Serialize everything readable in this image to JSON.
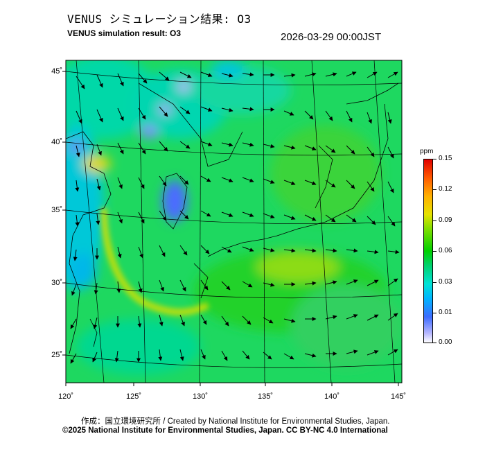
{
  "title_ja": "VENUS シミュレーション結果: O3",
  "title_en": "VENUS simulation result: O3",
  "timestamp": "2026-03-29 00:00JST",
  "lat_labels": [
    "45˚",
    "40˚",
    "35˚",
    "30˚",
    "25˚"
  ],
  "lon_labels": [
    "120˚",
    "125˚",
    "130˚",
    "135˚",
    "140˚",
    "145˚"
  ],
  "colorbar": {
    "unit": "ppm",
    "ticks": [
      "0.00",
      "0.01",
      "0.03",
      "0.06",
      "0.09",
      "0.12",
      "0.15"
    ],
    "colors": [
      "#ffffff",
      "#3c6cff",
      "#00b4ff",
      "#00d000",
      "#e6e200",
      "#ff5a00",
      "#e00000"
    ]
  },
  "credit_ja": "作成：国立環境研究所 / Created by National Institute for Environmental Studies, Japan.",
  "credit_en": "©2025 National Institute for Environmental Studies, Japan. CC BY-NC 4.0 International"
}
